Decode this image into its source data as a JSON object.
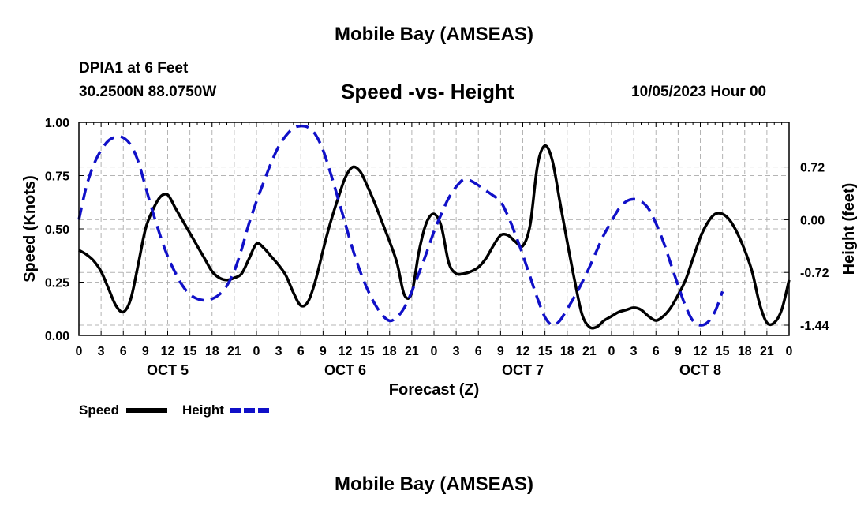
{
  "header": {
    "title": "Mobile Bay (AMSEAS)",
    "station": "DPIA1 at 6 Feet",
    "coords": "30.2500N  88.0750W",
    "subtitle": "Speed -vs- Height",
    "date": "10/05/2023 Hour 00"
  },
  "footer": {
    "title": "Mobile Bay (AMSEAS)"
  },
  "chart_data": {
    "type": "line",
    "xlabel": "Forecast (Z)",
    "ylabel_left": "Speed (Knots)",
    "ylabel_right": "Height (feet)",
    "x_range_hours": [
      0,
      96
    ],
    "y_left_range": [
      0,
      1.0
    ],
    "y_right_range": [
      -1.58,
      1.33
    ],
    "x_tick_hours": [
      0,
      3,
      6,
      9,
      12,
      15,
      18,
      21,
      24,
      27,
      30,
      33,
      36,
      39,
      42,
      45,
      48,
      51,
      54,
      57,
      60,
      63,
      66,
      69,
      72,
      75,
      78,
      81,
      84,
      87,
      90,
      93,
      96
    ],
    "x_tick_labels": [
      "0",
      "3",
      "6",
      "9",
      "12",
      "15",
      "18",
      "21",
      "0",
      "3",
      "6",
      "9",
      "12",
      "15",
      "18",
      "21",
      "0",
      "3",
      "6",
      "9",
      "12",
      "15",
      "18",
      "21",
      "0",
      "3",
      "6",
      "9",
      "12",
      "15",
      "18",
      "21",
      "0"
    ],
    "day_labels": [
      {
        "label": "OCT 5",
        "hour": 12
      },
      {
        "label": "OCT 6",
        "hour": 36
      },
      {
        "label": "OCT 7",
        "hour": 60
      },
      {
        "label": "OCT 8",
        "hour": 84
      }
    ],
    "y_left_ticks": [
      0,
      0.25,
      0.5,
      0.75,
      1.0
    ],
    "y_left_tick_labels": [
      "0.00",
      "0.25",
      "0.50",
      "0.75",
      "1.00"
    ],
    "y_right_ticks": [
      0.72,
      0,
      -0.72,
      -1.44
    ],
    "y_right_tick_labels": [
      "0.72",
      "0.00",
      "-0.72",
      "-1.44"
    ],
    "grid": true,
    "legend": [
      {
        "label": "Speed",
        "color": "#000000",
        "dash": "solid"
      },
      {
        "label": "Height",
        "color": "#1010c8",
        "dash": "dashed"
      }
    ],
    "series": [
      {
        "name": "Speed",
        "axis": "left",
        "color": "#000000",
        "points": [
          [
            0,
            0.4
          ],
          [
            1,
            0.38
          ],
          [
            2,
            0.35
          ],
          [
            3,
            0.3
          ],
          [
            4,
            0.22
          ],
          [
            5,
            0.14
          ],
          [
            6,
            0.11
          ],
          [
            7,
            0.17
          ],
          [
            8,
            0.33
          ],
          [
            9,
            0.5
          ],
          [
            10,
            0.59
          ],
          [
            11,
            0.65
          ],
          [
            12,
            0.66
          ],
          [
            13,
            0.6
          ],
          [
            14,
            0.54
          ],
          [
            15,
            0.48
          ],
          [
            16,
            0.42
          ],
          [
            17,
            0.36
          ],
          [
            18,
            0.3
          ],
          [
            19,
            0.27
          ],
          [
            20,
            0.26
          ],
          [
            21,
            0.27
          ],
          [
            22,
            0.29
          ],
          [
            23,
            0.36
          ],
          [
            24,
            0.43
          ],
          [
            25,
            0.41
          ],
          [
            26,
            0.37
          ],
          [
            27,
            0.33
          ],
          [
            28,
            0.28
          ],
          [
            29,
            0.2
          ],
          [
            30,
            0.14
          ],
          [
            31,
            0.16
          ],
          [
            32,
            0.26
          ],
          [
            33,
            0.4
          ],
          [
            34,
            0.53
          ],
          [
            35,
            0.64
          ],
          [
            36,
            0.74
          ],
          [
            37,
            0.79
          ],
          [
            38,
            0.77
          ],
          [
            39,
            0.7
          ],
          [
            40,
            0.62
          ],
          [
            41,
            0.53
          ],
          [
            42,
            0.44
          ],
          [
            43,
            0.34
          ],
          [
            44,
            0.19
          ],
          [
            45,
            0.2
          ],
          [
            46,
            0.4
          ],
          [
            47,
            0.53
          ],
          [
            48,
            0.57
          ],
          [
            49,
            0.51
          ],
          [
            50,
            0.34
          ],
          [
            51,
            0.29
          ],
          [
            52,
            0.29
          ],
          [
            53,
            0.3
          ],
          [
            54,
            0.32
          ],
          [
            55,
            0.36
          ],
          [
            56,
            0.42
          ],
          [
            57,
            0.47
          ],
          [
            58,
            0.47
          ],
          [
            59,
            0.44
          ],
          [
            60,
            0.42
          ],
          [
            61,
            0.52
          ],
          [
            62,
            0.8
          ],
          [
            63,
            0.89
          ],
          [
            64,
            0.82
          ],
          [
            65,
            0.63
          ],
          [
            66,
            0.44
          ],
          [
            67,
            0.26
          ],
          [
            68,
            0.1
          ],
          [
            69,
            0.04
          ],
          [
            70,
            0.04
          ],
          [
            71,
            0.07
          ],
          [
            72,
            0.09
          ],
          [
            73,
            0.11
          ],
          [
            74,
            0.12
          ],
          [
            75,
            0.13
          ],
          [
            76,
            0.12
          ],
          [
            77,
            0.09
          ],
          [
            78,
            0.07
          ],
          [
            79,
            0.09
          ],
          [
            80,
            0.13
          ],
          [
            81,
            0.19
          ],
          [
            82,
            0.26
          ],
          [
            83,
            0.36
          ],
          [
            84,
            0.46
          ],
          [
            85,
            0.53
          ],
          [
            86,
            0.57
          ],
          [
            87,
            0.57
          ],
          [
            88,
            0.54
          ],
          [
            89,
            0.48
          ],
          [
            90,
            0.4
          ],
          [
            91,
            0.3
          ],
          [
            92,
            0.15
          ],
          [
            93,
            0.06
          ],
          [
            94,
            0.06
          ],
          [
            95,
            0.12
          ],
          [
            96,
            0.26
          ]
        ]
      },
      {
        "name": "Height",
        "axis": "right",
        "color": "#1010c8",
        "points": [
          [
            0,
            0.0
          ],
          [
            1,
            0.45
          ],
          [
            2,
            0.75
          ],
          [
            3,
            0.95
          ],
          [
            4,
            1.08
          ],
          [
            5,
            1.13
          ],
          [
            6,
            1.12
          ],
          [
            7,
            1.02
          ],
          [
            8,
            0.8
          ],
          [
            9,
            0.45
          ],
          [
            10,
            0.1
          ],
          [
            11,
            -0.22
          ],
          [
            12,
            -0.5
          ],
          [
            13,
            -0.72
          ],
          [
            14,
            -0.9
          ],
          [
            15,
            -1.02
          ],
          [
            16,
            -1.08
          ],
          [
            17,
            -1.1
          ],
          [
            18,
            -1.08
          ],
          [
            19,
            -1.02
          ],
          [
            20,
            -0.9
          ],
          [
            21,
            -0.7
          ],
          [
            22,
            -0.4
          ],
          [
            23,
            -0.05
          ],
          [
            24,
            0.25
          ],
          [
            25,
            0.52
          ],
          [
            26,
            0.78
          ],
          [
            27,
            1.0
          ],
          [
            28,
            1.15
          ],
          [
            29,
            1.25
          ],
          [
            30,
            1.28
          ],
          [
            31,
            1.26
          ],
          [
            32,
            1.16
          ],
          [
            33,
            0.95
          ],
          [
            34,
            0.64
          ],
          [
            35,
            0.3
          ],
          [
            36,
            -0.05
          ],
          [
            37,
            -0.4
          ],
          [
            38,
            -0.7
          ],
          [
            39,
            -0.95
          ],
          [
            40,
            -1.15
          ],
          [
            41,
            -1.3
          ],
          [
            42,
            -1.38
          ],
          [
            43,
            -1.33
          ],
          [
            44,
            -1.2
          ],
          [
            45,
            -0.98
          ],
          [
            46,
            -0.72
          ],
          [
            47,
            -0.45
          ],
          [
            48,
            -0.16
          ],
          [
            49,
            0.08
          ],
          [
            50,
            0.3
          ],
          [
            51,
            0.45
          ],
          [
            52,
            0.55
          ],
          [
            53,
            0.53
          ],
          [
            54,
            0.47
          ],
          [
            55,
            0.4
          ],
          [
            56,
            0.33
          ],
          [
            57,
            0.25
          ],
          [
            58,
            0.05
          ],
          [
            59,
            -0.2
          ],
          [
            60,
            -0.48
          ],
          [
            61,
            -0.78
          ],
          [
            62,
            -1.08
          ],
          [
            63,
            -1.33
          ],
          [
            64,
            -1.44
          ],
          [
            65,
            -1.38
          ],
          [
            66,
            -1.22
          ],
          [
            67,
            -1.05
          ],
          [
            68,
            -0.86
          ],
          [
            69,
            -0.65
          ],
          [
            70,
            -0.42
          ],
          [
            71,
            -0.2
          ],
          [
            72,
            -0.02
          ],
          [
            73,
            0.15
          ],
          [
            74,
            0.25
          ],
          [
            75,
            0.28
          ],
          [
            76,
            0.25
          ],
          [
            77,
            0.15
          ],
          [
            78,
            -0.05
          ],
          [
            79,
            -0.3
          ],
          [
            80,
            -0.6
          ],
          [
            81,
            -0.9
          ],
          [
            82,
            -1.18
          ],
          [
            83,
            -1.38
          ],
          [
            84,
            -1.44
          ],
          [
            85,
            -1.4
          ],
          [
            86,
            -1.25
          ],
          [
            87,
            -0.98
          ]
        ]
      }
    ]
  }
}
